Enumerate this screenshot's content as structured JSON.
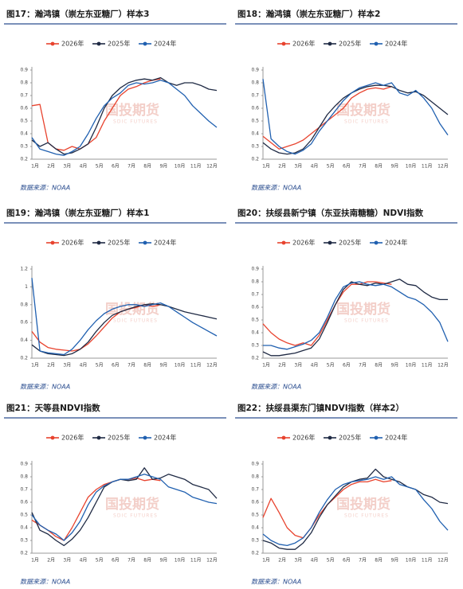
{
  "chart_data": [
    {
      "type": "line",
      "title": "图17：瀚鸿镇（崇左东亚糖厂）样本3",
      "source": "数据来源：NOAA",
      "categories": [
        "1月",
        null,
        "2月",
        null,
        "3月",
        null,
        "4月",
        null,
        "5月",
        null,
        "6月",
        null,
        "7月",
        null,
        "8月",
        null,
        "9月",
        null,
        "10月",
        null,
        "11月",
        null,
        "12月",
        null
      ],
      "series": [
        {
          "name": "2026年",
          "color": "#e8432e",
          "values": [
            0.62,
            0.63,
            0.33,
            0.28,
            0.27,
            0.3,
            0.28,
            0.32,
            0.37,
            0.5,
            0.6,
            0.7,
            0.75,
            0.77,
            0.8,
            0.82,
            0.83,
            null,
            null,
            null,
            null,
            null,
            null,
            null
          ]
        },
        {
          "name": "2025年",
          "color": "#1f2a44",
          "values": [
            0.35,
            0.3,
            0.33,
            0.28,
            0.24,
            0.25,
            0.28,
            0.32,
            0.45,
            0.6,
            0.7,
            0.76,
            0.8,
            0.82,
            0.83,
            0.82,
            0.84,
            0.8,
            0.78,
            0.8,
            0.8,
            0.78,
            0.75,
            0.74
          ]
        },
        {
          "name": "2024年",
          "color": "#2060b0",
          "values": [
            0.37,
            0.28,
            0.26,
            0.24,
            0.23,
            0.26,
            0.3,
            0.4,
            0.52,
            0.62,
            0.68,
            0.72,
            0.78,
            0.8,
            0.79,
            0.8,
            0.82,
            0.8,
            0.75,
            0.7,
            0.62,
            0.56,
            0.5,
            0.45
          ]
        }
      ],
      "ylim": [
        0.2,
        0.9
      ],
      "yticks": [
        0.2,
        0.3,
        0.4,
        0.5,
        0.6,
        0.7,
        0.8,
        0.9
      ],
      "legend": "top"
    },
    {
      "type": "line",
      "title": "图18：瀚鸿镇（崇左东亚糖厂）样本2",
      "source": "数据来源：NOAA",
      "categories": [
        "1月",
        null,
        "2月",
        null,
        "3月",
        null,
        "4月",
        null,
        "5月",
        null,
        "6月",
        null,
        "7月",
        null,
        "8月",
        null,
        "9月",
        null,
        "10月",
        null,
        "11月",
        null,
        "12月",
        null
      ],
      "series": [
        {
          "name": "2026年",
          "color": "#e8432e",
          "values": [
            0.38,
            0.33,
            0.28,
            0.3,
            0.32,
            0.35,
            0.4,
            0.45,
            0.5,
            0.55,
            0.6,
            0.68,
            0.72,
            0.75,
            0.76,
            0.75,
            0.77,
            null,
            null,
            null,
            null,
            null,
            null,
            null
          ]
        },
        {
          "name": "2025年",
          "color": "#1f2a44",
          "values": [
            0.33,
            0.28,
            0.25,
            0.24,
            0.25,
            0.28,
            0.35,
            0.45,
            0.55,
            0.62,
            0.68,
            0.72,
            0.75,
            0.77,
            0.78,
            0.78,
            0.77,
            0.74,
            0.72,
            0.73,
            0.7,
            0.65,
            0.6,
            0.55
          ]
        },
        {
          "name": "2024年",
          "color": "#2060b0",
          "values": [
            0.83,
            0.36,
            0.3,
            0.26,
            0.24,
            0.27,
            0.32,
            0.42,
            0.5,
            0.58,
            0.66,
            0.72,
            0.76,
            0.78,
            0.8,
            0.78,
            0.8,
            0.72,
            0.7,
            0.74,
            0.68,
            0.6,
            0.48,
            0.39
          ]
        }
      ],
      "ylim": [
        0.2,
        0.9
      ],
      "yticks": [
        0.2,
        0.3,
        0.4,
        0.5,
        0.6,
        0.7,
        0.8,
        0.9
      ],
      "legend": "top"
    },
    {
      "type": "line",
      "title": "图19：瀚鸿镇（崇左东亚糖厂）样本1",
      "source": "数据来源：NOAA",
      "categories": [
        "1月",
        null,
        "2月",
        null,
        "3月",
        null,
        "4月",
        null,
        "5月",
        null,
        "6月",
        null,
        "7月",
        null,
        "8月",
        null,
        "9月",
        null,
        "10月",
        null,
        "11月",
        null,
        "12月",
        null
      ],
      "series": [
        {
          "name": "2026年",
          "color": "#e8432e",
          "values": [
            0.5,
            0.38,
            0.32,
            0.3,
            0.29,
            0.28,
            0.3,
            0.36,
            0.45,
            0.55,
            0.65,
            0.72,
            0.75,
            0.77,
            0.8,
            0.78,
            0.8,
            null,
            null,
            null,
            null,
            null,
            null,
            null
          ]
        },
        {
          "name": "2025年",
          "color": "#1f2a44",
          "values": [
            0.35,
            0.28,
            0.25,
            0.24,
            0.23,
            0.25,
            0.3,
            0.38,
            0.5,
            0.6,
            0.68,
            0.72,
            0.75,
            0.78,
            0.8,
            0.81,
            0.8,
            0.78,
            0.75,
            0.72,
            0.7,
            0.68,
            0.66,
            0.64
          ]
        },
        {
          "name": "2024年",
          "color": "#2060b0",
          "values": [
            1.1,
            0.28,
            0.26,
            0.25,
            0.24,
            0.3,
            0.4,
            0.52,
            0.62,
            0.7,
            0.75,
            0.78,
            0.8,
            0.8,
            0.78,
            0.8,
            0.82,
            0.78,
            0.72,
            0.66,
            0.6,
            0.55,
            0.5,
            0.45
          ]
        }
      ],
      "ylim": [
        0.2,
        1.2
      ],
      "yticks": [
        0.2,
        0.4,
        0.6,
        0.8,
        1,
        1.2
      ],
      "legend": "top"
    },
    {
      "type": "line",
      "title": "图20：扶绥县新宁镇（东亚扶南糖糖）NDVI指数",
      "source": "数据来源：NOAA",
      "categories": [
        "1月",
        null,
        "2月",
        null,
        "3月",
        null,
        "4月",
        null,
        "5月",
        null,
        "6月",
        null,
        "7月",
        null,
        "8月",
        null,
        "9月",
        null,
        "10月",
        null,
        "11月",
        null,
        "12月",
        null
      ],
      "series": [
        {
          "name": "2026年",
          "color": "#e8432e",
          "values": [
            0.47,
            0.4,
            0.35,
            0.32,
            0.3,
            0.32,
            0.3,
            0.38,
            0.5,
            0.62,
            0.72,
            0.78,
            0.78,
            0.8,
            0.8,
            0.79,
            0.78,
            null,
            null,
            null,
            null,
            null,
            null,
            null
          ]
        },
        {
          "name": "2025年",
          "color": "#1f2a44",
          "values": [
            0.25,
            0.22,
            0.22,
            0.23,
            0.24,
            0.26,
            0.28,
            0.35,
            0.48,
            0.62,
            0.74,
            0.8,
            0.78,
            0.77,
            0.79,
            0.78,
            0.8,
            0.82,
            0.78,
            0.77,
            0.72,
            0.68,
            0.66,
            0.66
          ]
        },
        {
          "name": "2024年",
          "color": "#2060b0",
          "values": [
            0.3,
            0.3,
            0.28,
            0.27,
            0.29,
            0.31,
            0.34,
            0.4,
            0.52,
            0.66,
            0.76,
            0.79,
            0.8,
            0.78,
            0.77,
            0.78,
            0.76,
            0.72,
            0.68,
            0.66,
            0.62,
            0.56,
            0.48,
            0.33
          ]
        }
      ],
      "ylim": [
        0.2,
        0.9
      ],
      "yticks": [
        0.2,
        0.3,
        0.4,
        0.5,
        0.6,
        0.7,
        0.8,
        0.9
      ],
      "legend": "top"
    },
    {
      "type": "line",
      "title": "图21：天等县NDVI指数",
      "source": "数据来源：NOAA",
      "categories": [
        "1月",
        null,
        "2月",
        null,
        "3月",
        null,
        "4月",
        null,
        "5月",
        null,
        "6月",
        null,
        "7月",
        null,
        "8月",
        null,
        "9月",
        null,
        "10月",
        null,
        "11月",
        null,
        "12月",
        null
      ],
      "series": [
        {
          "name": "2026年",
          "color": "#e8432e",
          "values": [
            0.46,
            0.42,
            0.38,
            0.33,
            0.3,
            0.4,
            0.52,
            0.64,
            0.7,
            0.74,
            0.76,
            0.78,
            0.78,
            0.79,
            0.77,
            0.78,
            0.77,
            null,
            null,
            null,
            null,
            null,
            null,
            null
          ]
        },
        {
          "name": "2025年",
          "color": "#1f2a44",
          "values": [
            0.52,
            0.38,
            0.35,
            0.3,
            0.26,
            0.31,
            0.38,
            0.48,
            0.6,
            0.72,
            0.76,
            0.78,
            0.77,
            0.78,
            0.87,
            0.78,
            0.79,
            0.82,
            0.8,
            0.78,
            0.74,
            0.72,
            0.7,
            0.63
          ]
        },
        {
          "name": "2024年",
          "color": "#2060b0",
          "values": [
            0.5,
            0.42,
            0.38,
            0.35,
            0.3,
            0.36,
            0.45,
            0.58,
            0.68,
            0.73,
            0.76,
            0.78,
            0.78,
            0.8,
            0.82,
            0.8,
            0.78,
            0.72,
            0.7,
            0.68,
            0.64,
            0.62,
            0.6,
            0.59
          ]
        }
      ],
      "ylim": [
        0.2,
        0.9
      ],
      "yticks": [
        0.2,
        0.3,
        0.4,
        0.5,
        0.6,
        0.7,
        0.8,
        0.9
      ],
      "legend": "top"
    },
    {
      "type": "line",
      "title": "图22：扶绥县渠东门镇NDVI指数（样本2）",
      "source": "数据来源：NOAA",
      "categories": [
        "1月",
        null,
        "2月",
        null,
        "3月",
        null,
        "4月",
        null,
        "5月",
        null,
        "6月",
        null,
        "7月",
        null,
        "8月",
        null,
        "9月",
        null,
        "10月",
        null,
        "11月",
        null,
        "12月",
        null
      ],
      "series": [
        {
          "name": "2026年",
          "color": "#e8432e",
          "values": [
            0.48,
            0.63,
            0.52,
            0.4,
            0.34,
            0.32,
            0.4,
            0.5,
            0.58,
            0.64,
            0.7,
            0.74,
            0.76,
            0.76,
            0.78,
            0.76,
            0.77,
            null,
            null,
            null,
            null,
            null,
            null,
            null
          ]
        },
        {
          "name": "2025年",
          "color": "#1f2a44",
          "values": [
            0.3,
            0.28,
            0.24,
            0.23,
            0.23,
            0.28,
            0.36,
            0.48,
            0.58,
            0.65,
            0.72,
            0.76,
            0.78,
            0.79,
            0.86,
            0.8,
            0.78,
            0.76,
            0.72,
            0.7,
            0.66,
            0.64,
            0.6,
            0.59
          ]
        },
        {
          "name": "2024年",
          "color": "#2060b0",
          "values": [
            0.35,
            0.3,
            0.27,
            0.26,
            0.28,
            0.32,
            0.4,
            0.52,
            0.62,
            0.7,
            0.74,
            0.76,
            0.77,
            0.78,
            0.8,
            0.78,
            0.8,
            0.74,
            0.72,
            0.7,
            0.62,
            0.55,
            0.45,
            0.38
          ]
        }
      ],
      "ylim": [
        0.2,
        0.9
      ],
      "yticks": [
        0.2,
        0.3,
        0.4,
        0.5,
        0.6,
        0.7,
        0.8,
        0.9
      ],
      "legend": "top"
    }
  ],
  "watermark": {
    "text": "国投期货",
    "sub": "SDIC FUTURES"
  }
}
